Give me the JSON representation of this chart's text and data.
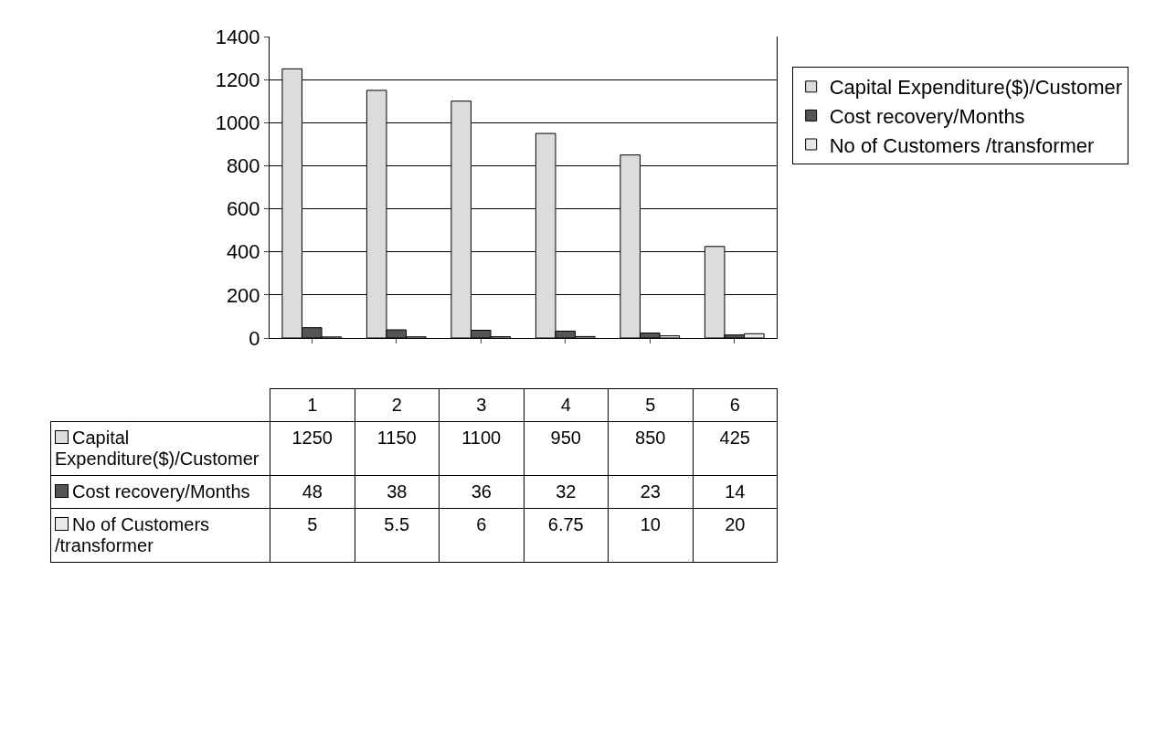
{
  "chart_data": {
    "type": "bar",
    "categories": [
      "1",
      "2",
      "3",
      "4",
      "5",
      "6"
    ],
    "series": [
      {
        "name": "Capital Expenditure($)/Customer",
        "color": "#dcdcdc",
        "values": [
          1250,
          1150,
          1100,
          950,
          850,
          425
        ]
      },
      {
        "name": "Cost recovery/Months",
        "color": "#555555",
        "values": [
          48,
          38,
          36,
          32,
          23,
          14
        ]
      },
      {
        "name": "No of Customers /transformer",
        "color": "#e8e8e8",
        "values": [
          5,
          5.5,
          6,
          6.75,
          10,
          20
        ]
      }
    ],
    "ylim": [
      0,
      1400
    ],
    "yticks": [
      0,
      200,
      400,
      600,
      800,
      1000,
      1200,
      1400
    ],
    "grid": "y",
    "legend": "right",
    "data_labels": true
  }
}
